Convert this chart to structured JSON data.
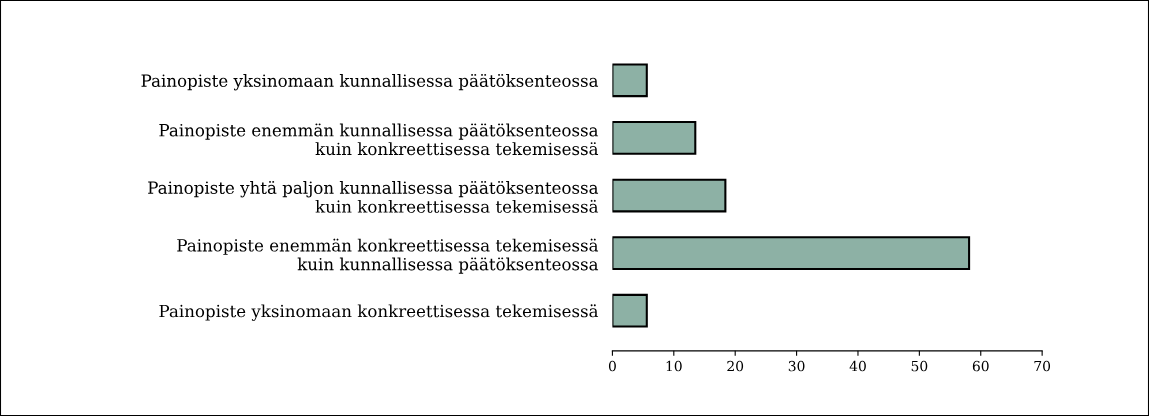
{
  "chart_data": {
    "type": "bar",
    "orientation": "horizontal",
    "categories": [
      "Painopiste yksinomaan kunnallisessa päätöksenteossa",
      "Painopiste enemmän kunnallisessa päätöksenteossa\nkuin konkreettisessa tekemisessä",
      "Painopiste yhtä paljon kunnallisessa päätöksenteossa\nkuin konkreettisessa tekemisessä",
      "Painopiste enemmän konkreettisessa tekemisessä\nkuin kunnallisessa päätöksenteossa",
      "Painopiste yksinomaan konkreettisessa tekemisessä"
    ],
    "values": [
      5.6,
      13.5,
      18.4,
      58.1,
      5.6
    ],
    "color": "#8db1a5",
    "xlim": [
      0,
      70
    ],
    "xticks": [
      0,
      10,
      20,
      30,
      40,
      50,
      60,
      70
    ],
    "grid": false
  }
}
